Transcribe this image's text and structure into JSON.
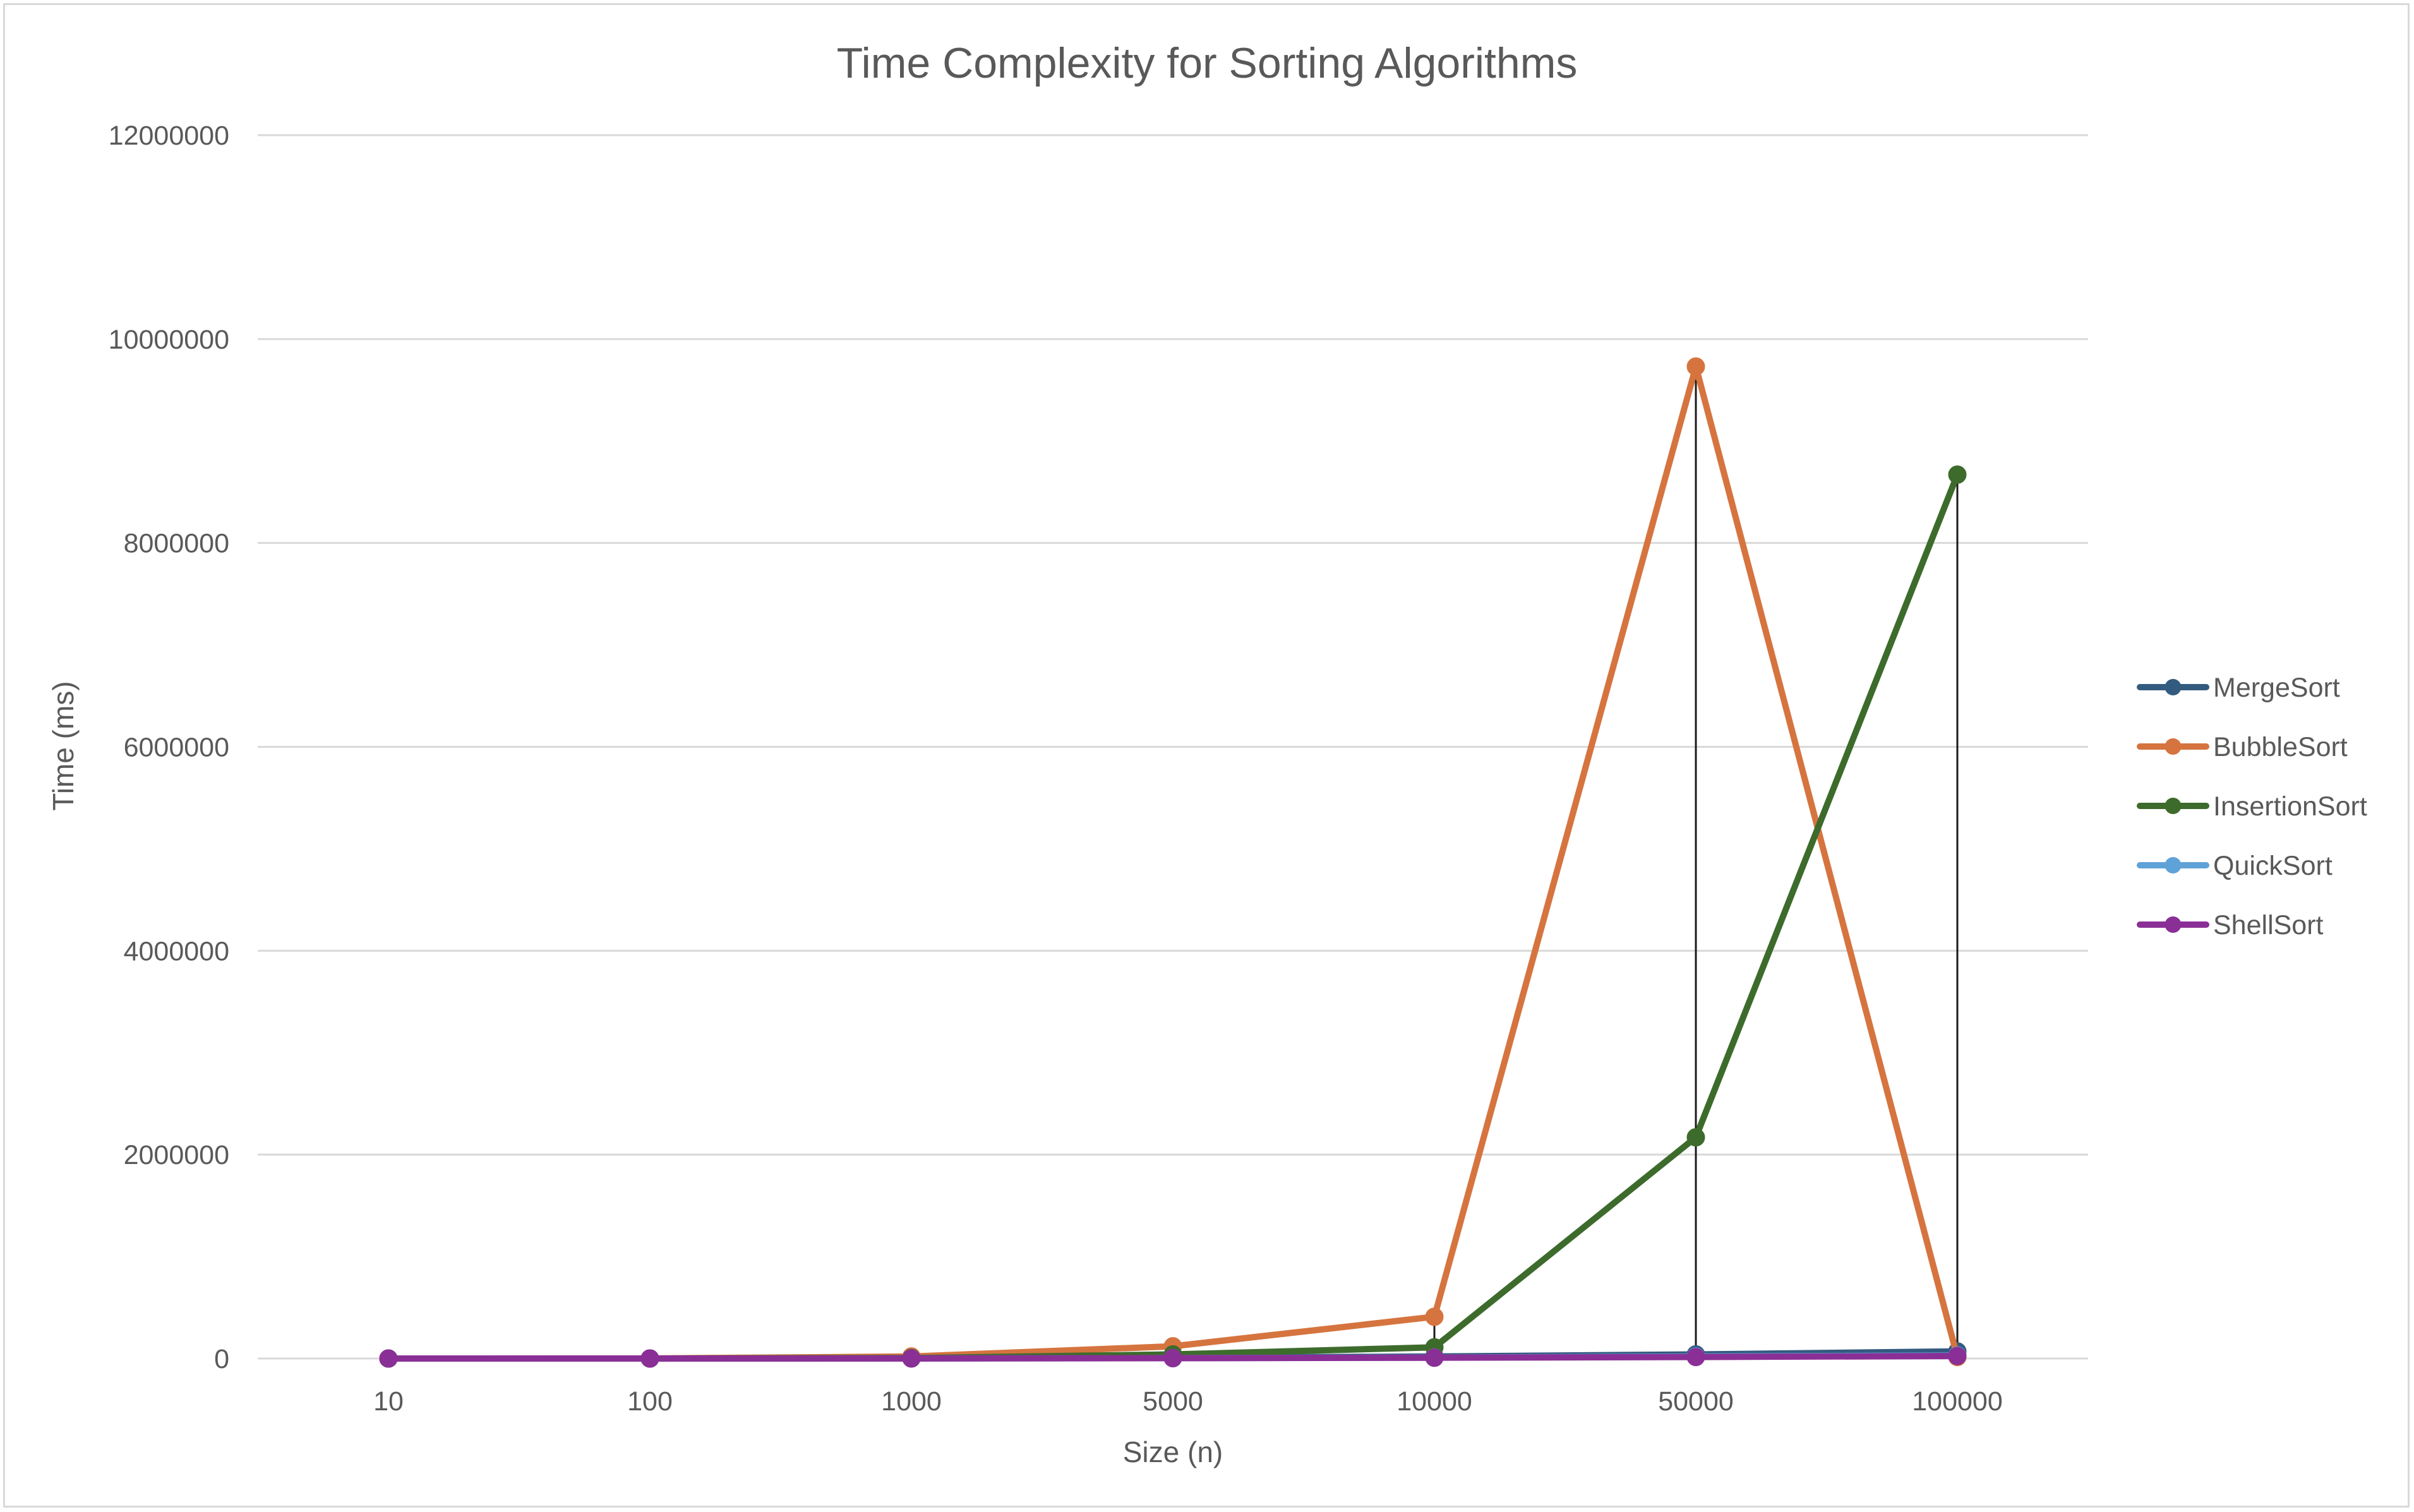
{
  "chart_data": {
    "type": "line",
    "title": "Time Complexity for Sorting Algorithms",
    "xlabel": "Size (n)",
    "ylabel": "Time (ms)",
    "categories": [
      "10",
      "100",
      "1000",
      "5000",
      "10000",
      "50000",
      "100000"
    ],
    "ylim": [
      0,
      12000000
    ],
    "yticks": [
      "0",
      "2000000",
      "4000000",
      "6000000",
      "8000000",
      "10000000",
      "12000000"
    ],
    "grid": true,
    "legend_position": "right",
    "drop_lines": true,
    "series": [
      {
        "name": "MergeSort",
        "color": "#335b80",
        "values": [
          0,
          100,
          1500,
          8000,
          20000,
          40000,
          70000
        ]
      },
      {
        "name": "BubbleSort",
        "color": "#d6743f",
        "values": [
          0,
          400,
          20000,
          120000,
          410000,
          9730000,
          15000
        ]
      },
      {
        "name": "InsertionSort",
        "color": "#3d6b2c",
        "values": [
          0,
          200,
          5000,
          40000,
          110000,
          2170000,
          8670000
        ]
      },
      {
        "name": "QuickSort",
        "color": "#5fa2d8",
        "values": [
          0,
          50,
          800,
          4000,
          9000,
          20000,
          30000
        ]
      },
      {
        "name": "ShellSort",
        "color": "#8a2f96",
        "values": [
          0,
          50,
          800,
          3500,
          8000,
          15000,
          25000
        ]
      }
    ]
  }
}
